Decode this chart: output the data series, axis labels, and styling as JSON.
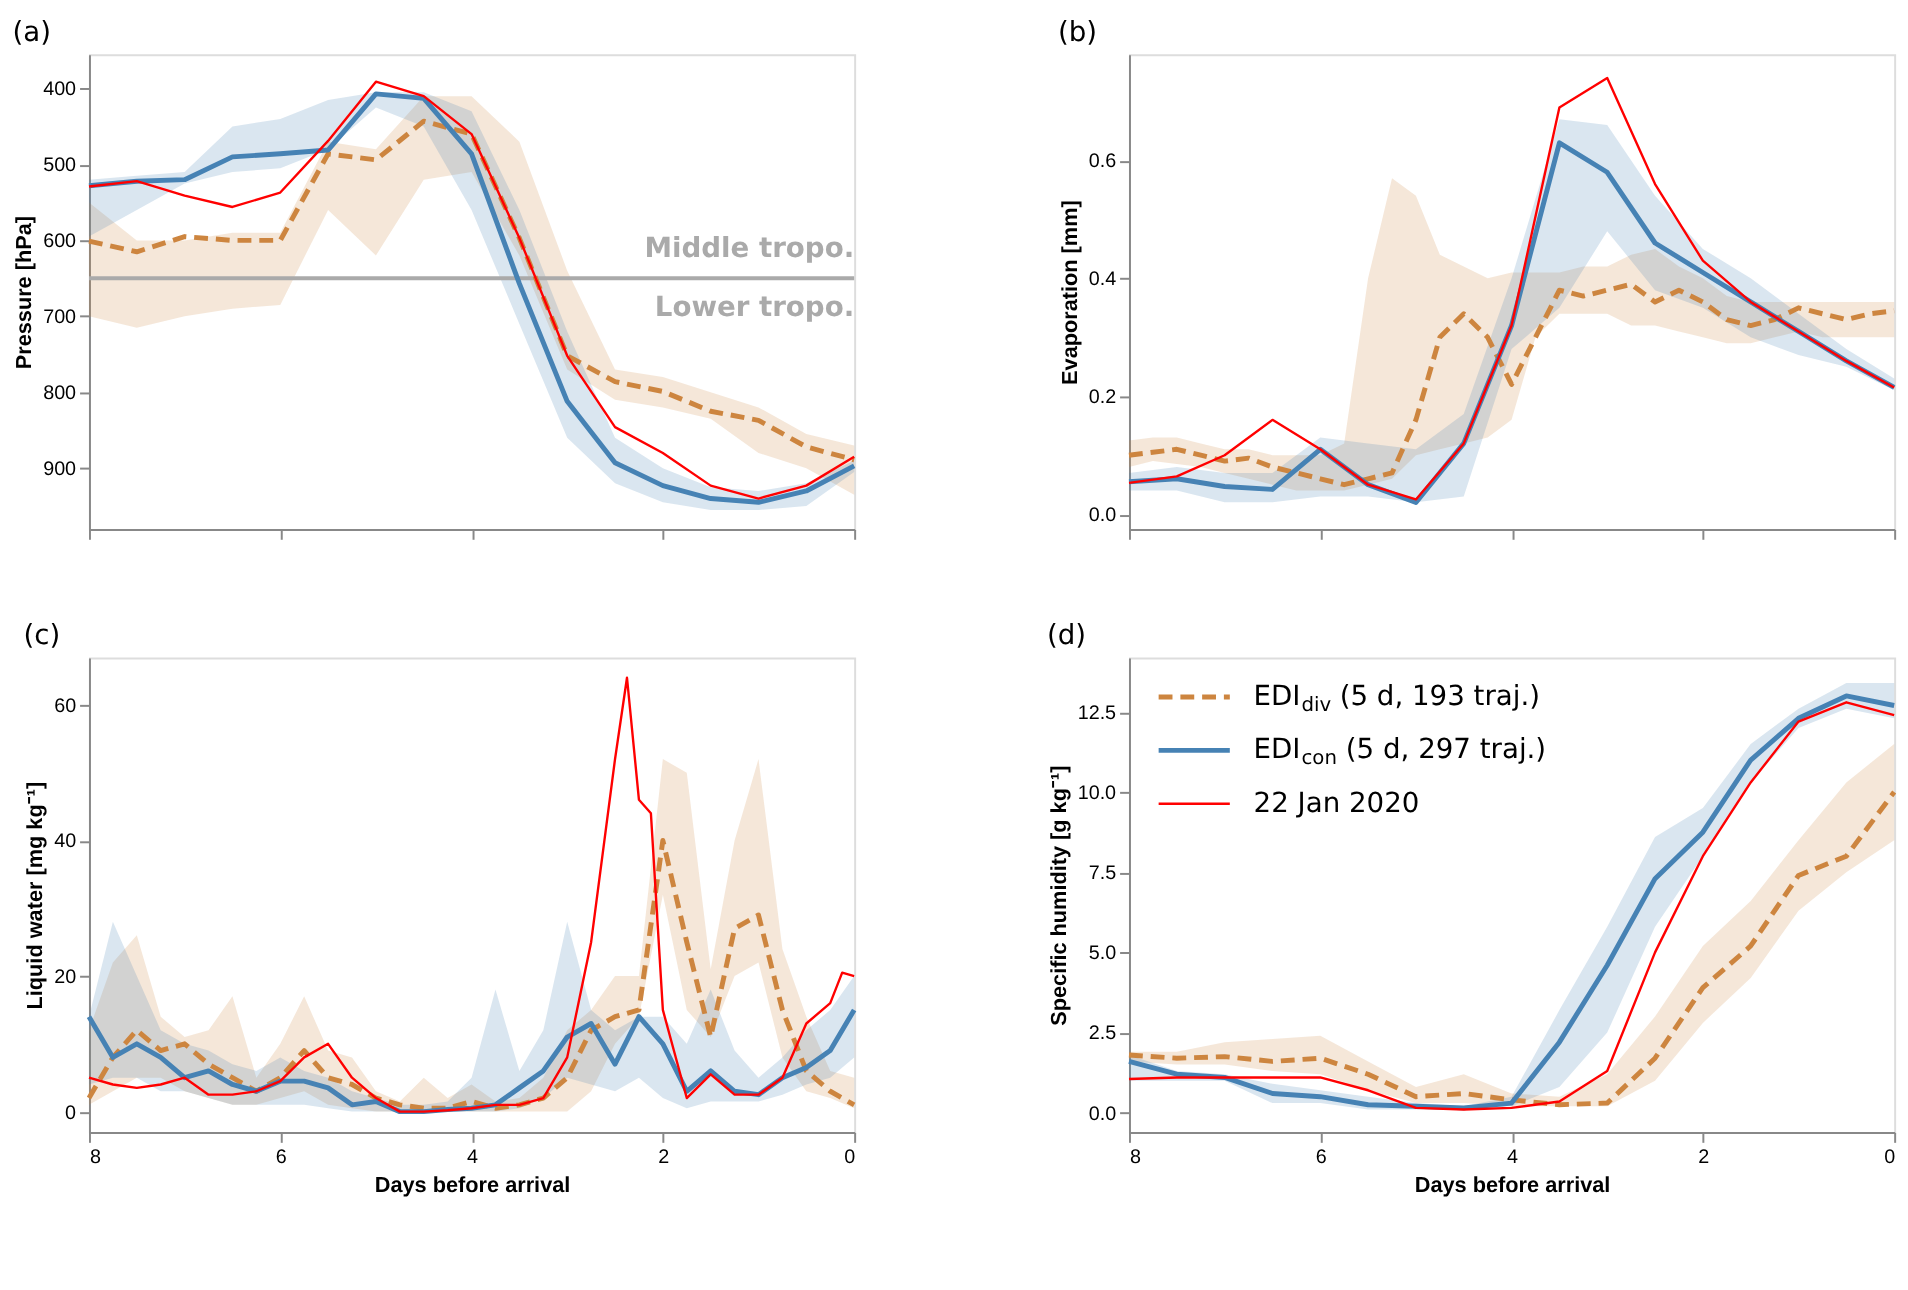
{
  "chart_data": [
    {
      "type": "line",
      "title": "(a)",
      "ylabel": "Pressure [hPa]",
      "x": [
        8,
        7.5,
        7,
        6.5,
        6,
        5.5,
        5,
        4.5,
        4,
        3.5,
        3,
        2.5,
        2,
        1.5,
        1,
        0.5,
        0
      ],
      "xlim": [
        8,
        0
      ],
      "xticks": [
        8,
        6,
        4,
        2,
        0
      ],
      "ylim": [
        980,
        355
      ],
      "yticks": [
        400,
        500,
        600,
        700,
        800,
        900
      ],
      "tick_labels": "y",
      "ref_lines": [
        {
          "axis": "y",
          "value": 650,
          "label": "Middle tropo.",
          "color": "#aaaaaa"
        }
      ],
      "annotations": [
        "Lower tropo."
      ],
      "series": [
        {
          "color": "#cd853f",
          "line_style": "dashed",
          "values": [
            601,
            615,
            595,
            600,
            600,
            486,
            494,
            443,
            460,
            597,
            752,
            786,
            799,
            825,
            837,
            872,
            889
          ],
          "lower": [
            550,
            600,
            600,
            590,
            590,
            470,
            480,
            410,
            410,
            470,
            640,
            770,
            780,
            800,
            820,
            855,
            870
          ],
          "upper": [
            700,
            715,
            700,
            690,
            685,
            560,
            620,
            520,
            510,
            620,
            770,
            810,
            820,
            835,
            880,
            900,
            935
          ]
        },
        {
          "color": "#4682b4",
          "line_style": "solid",
          "values": [
            528,
            522,
            520,
            490,
            486,
            481,
            407,
            413,
            486,
            657,
            812,
            893,
            923,
            940,
            945,
            930,
            897
          ],
          "lower": [
            520,
            515,
            510,
            450,
            440,
            415,
            405,
            405,
            430,
            560,
            720,
            860,
            900,
            925,
            930,
            920,
            890
          ],
          "upper": [
            595,
            560,
            525,
            510,
            505,
            480,
            425,
            450,
            560,
            710,
            860,
            920,
            945,
            955,
            955,
            950,
            905
          ]
        },
        {
          "color": "#ff0000",
          "line_style": "solid",
          "values": [
            529,
            522,
            541,
            556,
            537,
            469,
            391,
            410,
            460,
            597,
            752,
            846,
            880,
            923,
            940,
            923,
            885
          ]
        }
      ]
    },
    {
      "type": "line",
      "title": "(b)",
      "ylabel": "Evaporation [mm]",
      "x": [
        8,
        7.5,
        7,
        6.5,
        6,
        5.5,
        5,
        4.5,
        4,
        3.5,
        3,
        2.5,
        2,
        1.5,
        1,
        0.5,
        0
      ],
      "xlim": [
        8,
        0
      ],
      "xticks": [
        8,
        6,
        4,
        2,
        0
      ],
      "ylim": [
        -0.025,
        0.78
      ],
      "yticks": [
        {
          "value": 0,
          "label": "0.0"
        },
        {
          "value": 0.2,
          "label": "0.2"
        },
        {
          "value": 0.4,
          "label": "0.4"
        },
        {
          "value": 0.6,
          "label": "0.6"
        }
      ],
      "tick_labels": "y",
      "series": [
        {
          "color": "#cd853f",
          "line_style": "dashed",
          "x": [
            8,
            7.75,
            7.5,
            7.25,
            7,
            6.75,
            6.5,
            6.25,
            6,
            5.75,
            5.5,
            5.25,
            5,
            4.75,
            4.5,
            4.25,
            4,
            3.75,
            3.5,
            3.25,
            3,
            2.75,
            2.5,
            2.25,
            2,
            1.75,
            1.5,
            1.25,
            1,
            0.75,
            0.5,
            0.25,
            0
          ],
          "values": [
            0.1,
            0.105,
            0.11,
            0.1,
            0.09,
            0.095,
            0.08,
            0.07,
            0.06,
            0.05,
            0.06,
            0.07,
            0.16,
            0.3,
            0.34,
            0.3,
            0.22,
            0.3,
            0.38,
            0.37,
            0.38,
            0.39,
            0.36,
            0.38,
            0.36,
            0.33,
            0.32,
            0.33,
            0.35,
            0.34,
            0.33,
            0.34,
            0.345
          ],
          "lower": [
            0.08,
            0.09,
            0.085,
            0.08,
            0.07,
            0.06,
            0.05,
            0.04,
            0.04,
            0.04,
            0.05,
            0.06,
            0.1,
            0.11,
            0.12,
            0.13,
            0.16,
            0.3,
            0.34,
            0.34,
            0.34,
            0.32,
            0.32,
            0.31,
            0.3,
            0.29,
            0.29,
            0.3,
            0.31,
            0.3,
            0.3,
            0.3,
            0.3
          ],
          "upper": [
            0.125,
            0.13,
            0.13,
            0.12,
            0.11,
            0.11,
            0.1,
            0.1,
            0.1,
            0.12,
            0.4,
            0.57,
            0.54,
            0.44,
            0.42,
            0.4,
            0.41,
            0.41,
            0.41,
            0.42,
            0.42,
            0.44,
            0.45,
            0.42,
            0.4,
            0.37,
            0.36,
            0.36,
            0.36,
            0.36,
            0.36,
            0.36,
            0.36
          ]
        },
        {
          "color": "#4682b4",
          "line_style": "solid",
          "values": [
            0.055,
            0.06,
            0.047,
            0.042,
            0.11,
            0.05,
            0.02,
            0.12,
            0.32,
            0.63,
            0.58,
            0.46,
            0.41,
            0.36,
            0.31,
            0.26,
            0.215
          ],
          "lower": [
            0.04,
            0.04,
            0.02,
            0.02,
            0.03,
            0.03,
            0.02,
            0.03,
            0.28,
            0.35,
            0.48,
            0.38,
            0.35,
            0.3,
            0.27,
            0.25,
            0.21
          ],
          "upper": [
            0.07,
            0.08,
            0.07,
            0.07,
            0.13,
            0.12,
            0.11,
            0.17,
            0.4,
            0.67,
            0.66,
            0.54,
            0.45,
            0.4,
            0.34,
            0.28,
            0.23
          ]
        },
        {
          "color": "#ff0000",
          "line_style": "solid",
          "values": [
            0.053,
            0.064,
            0.1,
            0.16,
            0.11,
            0.05,
            0.025,
            0.12,
            0.32,
            0.69,
            0.74,
            0.56,
            0.43,
            0.36,
            0.31,
            0.26,
            0.215
          ]
        }
      ]
    },
    {
      "type": "line",
      "title": "(c)",
      "ylabel": "Liquid water [mg kg⁻¹]",
      "xlabel": "Days before arrival",
      "x": [
        8,
        7.75,
        7.5,
        7.25,
        7,
        6.75,
        6.5,
        6.25,
        6,
        5.75,
        5.5,
        5.25,
        5,
        4.75,
        4.5,
        4.25,
        4,
        3.75,
        3.5,
        3.25,
        3,
        2.75,
        2.5,
        2.25,
        2,
        1.75,
        1.5,
        1.25,
        1,
        0.75,
        0.5,
        0.25,
        0
      ],
      "xlim": [
        8,
        0
      ],
      "xticks": [
        8,
        6,
        4,
        2,
        0
      ],
      "ylim": [
        -3,
        67
      ],
      "yticks": [
        0,
        20,
        40,
        60
      ],
      "series": [
        {
          "color": "#cd853f",
          "line_style": "dashed",
          "values": [
            2,
            8,
            12,
            9,
            10,
            7,
            5,
            3,
            5,
            9,
            5,
            4,
            2,
            1,
            0.5,
            0.5,
            1.5,
            0.5,
            1,
            2,
            5,
            12,
            14,
            15,
            40,
            25,
            11,
            27,
            29,
            15,
            6,
            3,
            1
          ],
          "lower": [
            1,
            3,
            5,
            5,
            3,
            2,
            1,
            1,
            2,
            3,
            1,
            0.5,
            0,
            0,
            0,
            0,
            0,
            0,
            0,
            0,
            0,
            3,
            10,
            14,
            32,
            15,
            11,
            20,
            22,
            8,
            3,
            2,
            0.5
          ],
          "upper": [
            12,
            22,
            26,
            14,
            11,
            12,
            17,
            5,
            10,
            17,
            9,
            8,
            3,
            1.5,
            5,
            2,
            4,
            1.5,
            2,
            5,
            12,
            15,
            20,
            20,
            52,
            50,
            21,
            40,
            52,
            24,
            14,
            6,
            5
          ]
        },
        {
          "color": "#4682b4",
          "line_style": "solid",
          "values": [
            14,
            8,
            10,
            8,
            5,
            6,
            4,
            3,
            4.5,
            4.5,
            3.5,
            1,
            1.5,
            0,
            0,
            0.3,
            0.5,
            1,
            3.5,
            6,
            11,
            13,
            7,
            14,
            10,
            3,
            6,
            3,
            2.5,
            5,
            6.5,
            9,
            15
          ],
          "lower": [
            4,
            5,
            5,
            3,
            3,
            2,
            1,
            1,
            1,
            1,
            0.5,
            0,
            0,
            0,
            0,
            0,
            0,
            0,
            0.5,
            2,
            5,
            4,
            3,
            5,
            2,
            0.5,
            1.5,
            1.5,
            1.5,
            2.5,
            4,
            5,
            8
          ],
          "upper": [
            14,
            28,
            20,
            12,
            10,
            9,
            7,
            6,
            8,
            6,
            5,
            3,
            2,
            1,
            1,
            1.5,
            5,
            18,
            6,
            12,
            28,
            15,
            12,
            14,
            14,
            10,
            18,
            9,
            5,
            8,
            12,
            15,
            20
          ]
        },
        {
          "color": "#ff0000",
          "line_style": "solid",
          "x": [
            8,
            7.75,
            7.5,
            7.25,
            7,
            6.75,
            6.5,
            6.25,
            6,
            5.75,
            5.5,
            5.25,
            5,
            4.75,
            4.5,
            4.25,
            4,
            3.75,
            3.5,
            3.25,
            3,
            2.75,
            2.5,
            2.375,
            2.25,
            2.125,
            2,
            1.75,
            1.5,
            1.25,
            1,
            0.75,
            0.5,
            0.25,
            0.125,
            0
          ],
          "values": [
            5,
            4,
            3.5,
            4,
            5,
            2.5,
            2.5,
            3,
            4.5,
            8,
            10,
            5,
            2,
            0,
            0,
            0.2,
            0.5,
            1,
            1,
            2,
            8,
            25,
            52,
            64,
            46,
            44,
            15,
            2,
            5.5,
            2.5,
            2.5,
            5,
            13,
            16,
            20.5,
            20
          ]
        }
      ]
    },
    {
      "type": "line",
      "title": "(d)",
      "ylabel": "Specific humidity [g kg⁻¹]",
      "xlabel": "Days before arrival",
      "x": [
        8,
        7.5,
        7,
        6.5,
        6,
        5.5,
        5,
        4.5,
        4,
        3.5,
        3,
        2.5,
        2,
        1.5,
        1,
        0.5,
        0
      ],
      "xlim": [
        8,
        0
      ],
      "xticks": [
        8,
        6,
        4,
        2,
        0
      ],
      "ylim": [
        -0.6,
        14.2
      ],
      "yticks": [
        {
          "value": 0,
          "label": "0.0"
        },
        {
          "value": 2.5,
          "label": "2.5"
        },
        {
          "value": 5,
          "label": "5.0"
        },
        {
          "value": 7.5,
          "label": "7.5"
        },
        {
          "value": 10,
          "label": "10.0"
        },
        {
          "value": 12.5,
          "label": "12.5"
        }
      ],
      "legend": "top left",
      "series": [
        {
          "name": "EDI$_{div}$ (5 d, 193 traj.)",
          "color": "#cd853f",
          "line_style": "dashed",
          "values": [
            1.8,
            1.7,
            1.75,
            1.6,
            1.7,
            1.2,
            0.5,
            0.6,
            0.4,
            0.25,
            0.3,
            1.7,
            3.9,
            5.2,
            7.4,
            8.0,
            10.0
          ],
          "lower": [
            1.6,
            1.5,
            1.5,
            1.3,
            1.2,
            0.7,
            0.3,
            0.3,
            0.2,
            0.2,
            0.2,
            1.0,
            2.8,
            4.2,
            6.3,
            7.5,
            8.5
          ],
          "upper": [
            1.9,
            1.9,
            2.2,
            2.3,
            2.4,
            1.6,
            0.8,
            1.2,
            0.6,
            0.5,
            1.2,
            3.0,
            5.2,
            6.6,
            8.5,
            10.3,
            11.5
          ]
        },
        {
          "name": "EDI$_{con}$ (5 d, 297 traj.)",
          "color": "#4682b4",
          "line_style": "solid",
          "values": [
            1.6,
            1.2,
            1.1,
            0.6,
            0.5,
            0.25,
            0.2,
            0.15,
            0.3,
            2.2,
            4.6,
            7.3,
            8.75,
            11,
            12.3,
            13.0,
            12.7
          ],
          "lower": [
            1.0,
            1.0,
            1.0,
            0.3,
            0.3,
            0.1,
            0.1,
            0.1,
            0.2,
            0.8,
            2.5,
            5.8,
            8.0,
            10.3,
            12.0,
            12.6,
            12.3
          ],
          "upper": [
            1.8,
            1.3,
            1.2,
            0.9,
            0.7,
            0.5,
            0.3,
            0.2,
            0.5,
            3.2,
            5.8,
            8.6,
            9.5,
            11.5,
            12.6,
            13.4,
            13.4
          ]
        },
        {
          "name": "22 Jan 2020",
          "color": "#ff0000",
          "line_style": "solid",
          "values": [
            1.05,
            1.1,
            1.1,
            1.1,
            1.1,
            0.7,
            0.15,
            0.1,
            0.15,
            0.35,
            1.3,
            5.0,
            8.0,
            10.3,
            12.2,
            12.8,
            12.4
          ]
        }
      ]
    }
  ]
}
